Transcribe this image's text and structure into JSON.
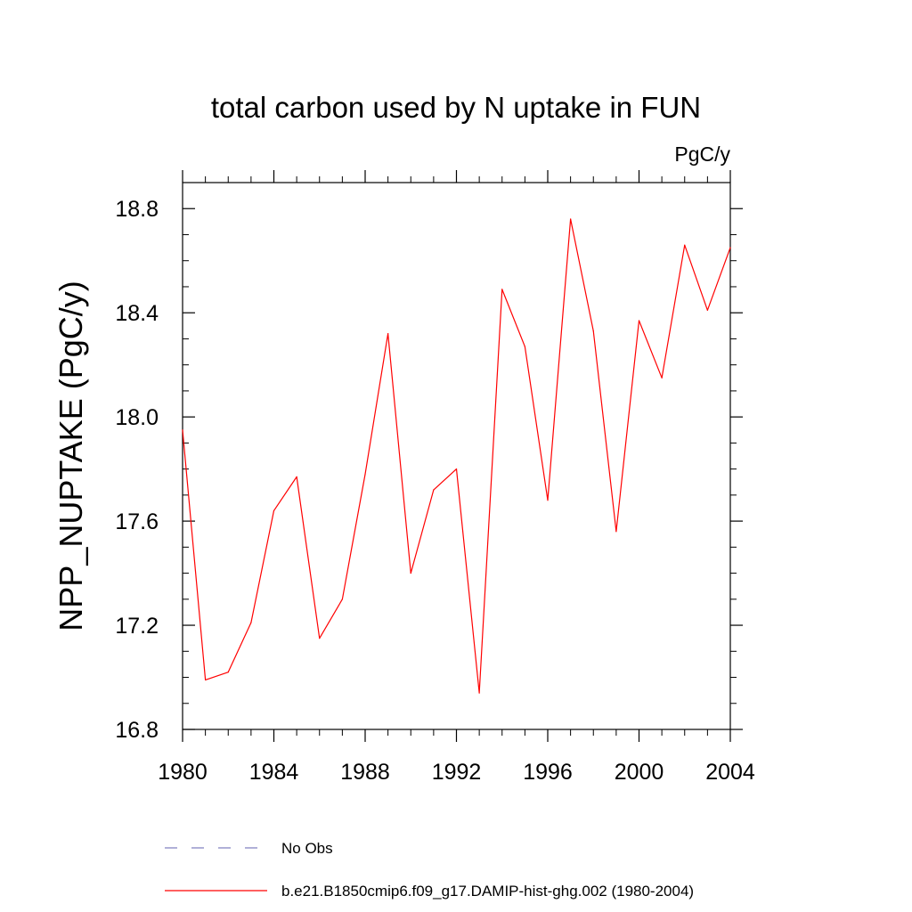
{
  "chart_data": {
    "type": "line",
    "title": "total carbon used by N uptake in FUN",
    "units": "PgC/y",
    "ylabel": "NPP_NUPTAKE  (PgC/y)",
    "xlabel": "",
    "xlim": [
      1980,
      2004
    ],
    "ylim": [
      16.8,
      18.9
    ],
    "x_ticks": [
      1980,
      1984,
      1988,
      1992,
      1996,
      2000,
      2004
    ],
    "x_tick_labels": [
      "1980",
      "1984",
      "1988",
      "1992",
      "1996",
      "2000",
      "2004"
    ],
    "y_ticks": [
      16.8,
      17.2,
      17.6,
      18.0,
      18.4,
      18.8
    ],
    "y_tick_labels": [
      "16.8",
      "17.2",
      "17.6",
      "18.0",
      "18.4",
      "18.8"
    ],
    "grid": false,
    "legend_position": "bottom",
    "series": [
      {
        "name": "No Obs",
        "color": "#8080c0",
        "dash": "dashed",
        "x": [],
        "values": []
      },
      {
        "name": "b.e21.B1850cmip6.f09_g17.DAMIP-hist-ghg.002 (1980-2004)",
        "color": "#ff0000",
        "dash": "solid",
        "x": [
          1980,
          1981,
          1982,
          1983,
          1984,
          1985,
          1986,
          1987,
          1988,
          1989,
          1990,
          1991,
          1992,
          1993,
          1994,
          1995,
          1996,
          1997,
          1998,
          1999,
          2000,
          2001,
          2002,
          2003,
          2004
        ],
        "values": [
          17.95,
          16.99,
          17.02,
          17.21,
          17.64,
          17.77,
          17.15,
          17.3,
          17.78,
          18.32,
          17.4,
          17.72,
          17.8,
          16.94,
          18.49,
          18.27,
          17.68,
          18.76,
          18.33,
          17.56,
          18.37,
          18.15,
          18.66,
          18.41,
          18.65
        ]
      }
    ]
  }
}
